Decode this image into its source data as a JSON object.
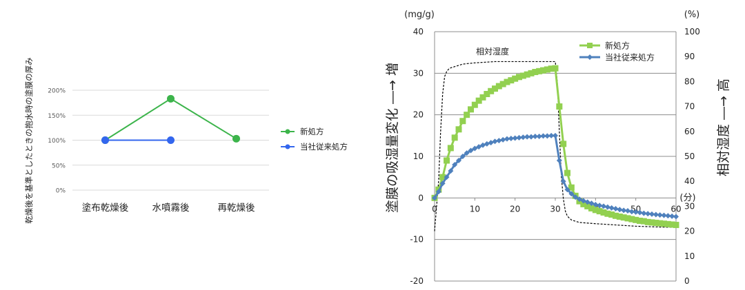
{
  "chart_data": [
    {
      "type": "line",
      "title": "",
      "ylabel": "乾燥後を基準としたときの抱水時の塗膜の厚み",
      "xlabel": "",
      "categories": [
        "塗布乾燥後",
        "水噴霧後",
        "再乾燥後"
      ],
      "ylim": [
        0,
        200
      ],
      "yticks": [
        "0%",
        "50%",
        "100%",
        "150%",
        "200%"
      ],
      "grid": true,
      "legend_position": "right",
      "series": [
        {
          "name": "新処方",
          "color": "#3cb44b",
          "values": [
            100,
            183,
            103
          ]
        },
        {
          "name": "当社従来処方",
          "color": "#3366ee",
          "values": [
            100,
            100,
            null
          ]
        }
      ]
    },
    {
      "type": "line",
      "title": "",
      "ylabel": "塗膜の吸湿量変化 ―→ 増",
      "ylabel_unit": "(mg/g)",
      "y2label": "相対湿度 ―→ 高",
      "y2label_unit": "(%)",
      "xlabel_unit": "(分)",
      "xlim": [
        0,
        60
      ],
      "ylim": [
        -20,
        40
      ],
      "y2lim": [
        0,
        100
      ],
      "xticks": [
        0,
        10,
        20,
        30,
        40,
        50,
        60
      ],
      "yticks": [
        -20,
        -10,
        0,
        10,
        20,
        30,
        40
      ],
      "y2ticks": [
        0,
        10,
        20,
        30,
        40,
        50,
        60,
        70,
        80,
        90,
        100
      ],
      "grid": true,
      "legend_position": "top-right",
      "annotation": "相対湿度",
      "series": [
        {
          "name": "新処方",
          "color": "#92d050",
          "marker": "square",
          "x": [
            0,
            1,
            2,
            3,
            4,
            5,
            6,
            7,
            8,
            9,
            10,
            11,
            12,
            13,
            14,
            15,
            16,
            17,
            18,
            19,
            20,
            21,
            22,
            23,
            24,
            25,
            26,
            27,
            28,
            29,
            30,
            31,
            32,
            33,
            34,
            35,
            36,
            37,
            38,
            39,
            40,
            41,
            42,
            43,
            44,
            45,
            46,
            47,
            48,
            49,
            50,
            51,
            52,
            53,
            54,
            55,
            56,
            57,
            58,
            59,
            60
          ],
          "values": [
            0,
            2,
            5,
            9,
            12,
            14.5,
            16.5,
            18.5,
            20,
            21.3,
            22.4,
            23.4,
            24.2,
            25,
            25.7,
            26.3,
            26.9,
            27.4,
            27.9,
            28.3,
            28.7,
            29.1,
            29.4,
            29.7,
            30,
            30.3,
            30.5,
            30.7,
            30.9,
            31.1,
            31.2,
            22,
            13,
            6,
            2.5,
            0.5,
            -0.8,
            -1.5,
            -2,
            -2.5,
            -2.9,
            -3.2,
            -3.5,
            -3.8,
            -4,
            -4.3,
            -4.5,
            -4.7,
            -4.9,
            -5.1,
            -5.3,
            -5.5,
            -5.6,
            -5.8,
            -5.9,
            -6,
            -6.1,
            -6.2,
            -6.3,
            -6.4,
            -6.5
          ]
        },
        {
          "name": "当社従来処方",
          "color": "#4f81bd",
          "marker": "diamond",
          "x": [
            0,
            1,
            2,
            3,
            4,
            5,
            6,
            7,
            8,
            9,
            10,
            11,
            12,
            13,
            14,
            15,
            16,
            17,
            18,
            19,
            20,
            21,
            22,
            23,
            24,
            25,
            26,
            27,
            28,
            29,
            30,
            31,
            32,
            33,
            34,
            35,
            36,
            37,
            38,
            39,
            40,
            41,
            42,
            43,
            44,
            45,
            46,
            47,
            48,
            49,
            50,
            51,
            52,
            53,
            54,
            55,
            56,
            57,
            58,
            59,
            60
          ],
          "values": [
            0,
            1.5,
            3.5,
            5,
            6.5,
            8,
            9,
            10,
            10.8,
            11.4,
            11.9,
            12.3,
            12.7,
            13,
            13.3,
            13.6,
            13.8,
            14,
            14.2,
            14.3,
            14.4,
            14.5,
            14.6,
            14.7,
            14.7,
            14.8,
            14.8,
            14.9,
            14.9,
            15,
            15,
            9,
            4,
            2,
            1,
            0.2,
            -0.3,
            -0.7,
            -1,
            -1.3,
            -1.6,
            -1.8,
            -2,
            -2.2,
            -2.4,
            -2.6,
            -2.8,
            -3,
            -3.1,
            -3.3,
            -3.4,
            -3.5,
            -3.7,
            -3.8,
            -3.9,
            -4,
            -4.1,
            -4.2,
            -4.3,
            -4.4,
            -4.5
          ]
        },
        {
          "name": "相対湿度",
          "axis": "y2",
          "style": "dashed",
          "color": "#000000",
          "x": [
            0,
            1,
            1.5,
            2,
            2.5,
            3,
            3.5,
            4,
            5,
            6,
            7,
            10,
            15,
            20,
            25,
            28,
            29.5,
            30,
            30.5,
            31,
            31.5,
            32,
            32.5,
            33,
            34,
            35,
            36,
            40,
            45,
            50,
            55,
            60
          ],
          "values": [
            20,
            40,
            60,
            75,
            82,
            84,
            85,
            85.5,
            86,
            86.5,
            87,
            87.5,
            88,
            88,
            88,
            88,
            88,
            88,
            80,
            60,
            42,
            33,
            28,
            26,
            24.5,
            24,
            23.5,
            23,
            22.5,
            22,
            21.7,
            21.5
          ]
        }
      ]
    }
  ]
}
